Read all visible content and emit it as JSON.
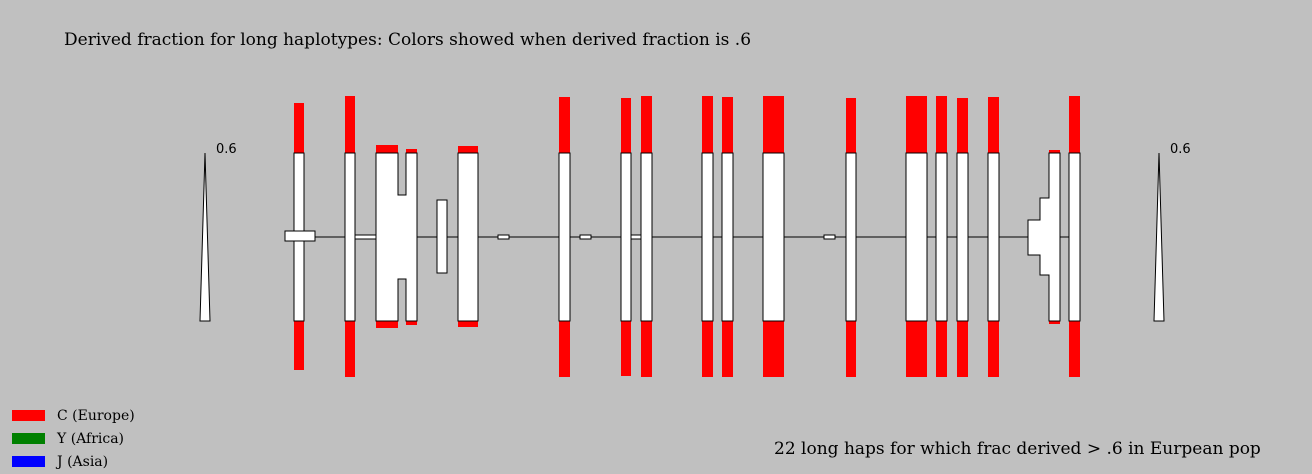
{
  "title": "Derived fraction for long haplotypes: Colors showed when derived fraction is .6",
  "summary": "22 long haps for which frac derived > .6 in Eurpean pop",
  "scale_label_left": "0.6",
  "scale_label_right": "0.6",
  "legend": [
    {
      "label": "C (Europe)",
      "color": "#ff0000"
    },
    {
      "label": "Y (Africa)",
      "color": "#008000"
    },
    {
      "label": "J (Asia)",
      "color": "#0000ff"
    }
  ]
}
